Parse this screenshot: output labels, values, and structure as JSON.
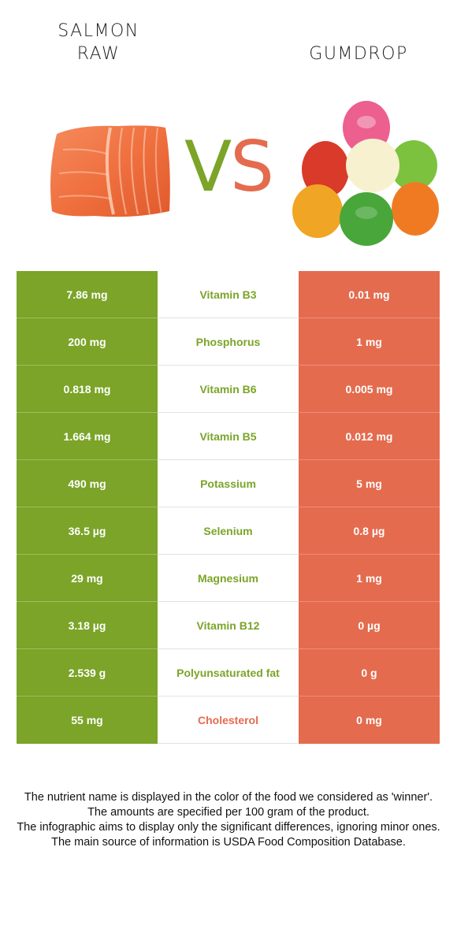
{
  "left_food": {
    "line1": "SALMON",
    "line2": "RAW",
    "color": "#7ba428"
  },
  "right_food": {
    "line1": "GUMDROP",
    "color": "#e46b4e"
  },
  "vs": {
    "v": "V",
    "s": "S"
  },
  "rows": [
    {
      "left": "7.86 mg",
      "nutrient": "Vitamin B3",
      "right": "0.01 mg",
      "winner": "left"
    },
    {
      "left": "200 mg",
      "nutrient": "Phosphorus",
      "right": "1 mg",
      "winner": "left"
    },
    {
      "left": "0.818 mg",
      "nutrient": "Vitamin B6",
      "right": "0.005 mg",
      "winner": "left"
    },
    {
      "left": "1.664 mg",
      "nutrient": "Vitamin B5",
      "right": "0.012 mg",
      "winner": "left"
    },
    {
      "left": "490 mg",
      "nutrient": "Potassium",
      "right": "5 mg",
      "winner": "left"
    },
    {
      "left": "36.5 µg",
      "nutrient": "Selenium",
      "right": "0.8 µg",
      "winner": "left"
    },
    {
      "left": "29 mg",
      "nutrient": "Magnesium",
      "right": "1 mg",
      "winner": "left"
    },
    {
      "left": "3.18 µg",
      "nutrient": "Vitamin B12",
      "right": "0 µg",
      "winner": "left"
    },
    {
      "left": "2.539 g",
      "nutrient": "Polyunsaturated fat",
      "right": "0 g",
      "winner": "left"
    },
    {
      "left": "55 mg",
      "nutrient": "Cholesterol",
      "right": "0 mg",
      "winner": "right"
    }
  ],
  "footer": {
    "line1": "The nutrient name is displayed in the color of the food we considered as 'winner'.",
    "line2": "The amounts are specified per 100 gram of the product.",
    "line3": "The infographic aims to display only the significant differences, ignoring minor ones.",
    "line4": "The main source of information is USDA Food Composition Database."
  }
}
